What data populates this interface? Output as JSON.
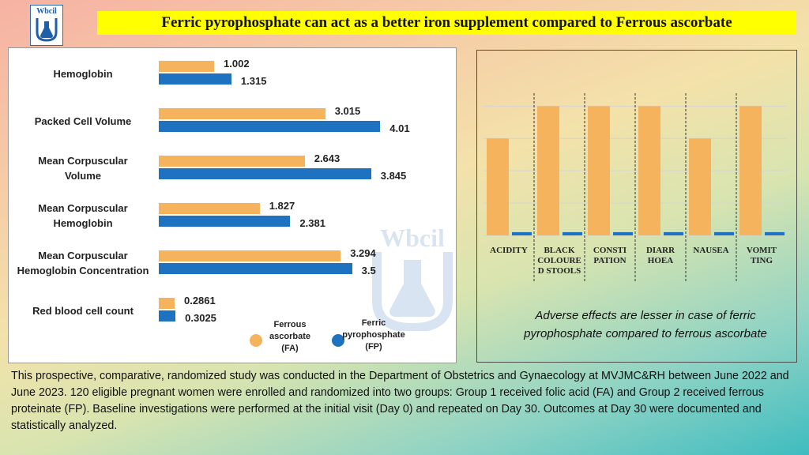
{
  "logo": {
    "text": "Wbcil"
  },
  "headline": "Ferric pyrophosphate can act as a better iron supplement compared to Ferrous ascorbate",
  "watermark": {
    "text": "Wbcil"
  },
  "legend": {
    "fa": {
      "lines": [
        "Ferrous",
        "ascorbate",
        "(FA)"
      ],
      "color": "#f5b35e"
    },
    "fp": {
      "lines": [
        "Ferric",
        "pyrophosphate",
        "(FP)"
      ],
      "color": "#1e72bf"
    }
  },
  "chart_data": [
    {
      "type": "bar",
      "orientation": "horizontal",
      "title": "",
      "categories": [
        [
          "Hemoglobin"
        ],
        [
          "Packed Cell Volume"
        ],
        [
          "Mean Corpuscular",
          "Volume"
        ],
        [
          "Mean Corpuscular",
          "Hemoglobin"
        ],
        [
          "Mean Corpuscular",
          "Hemoglobin Concentration"
        ],
        [
          "Red blood cell count"
        ]
      ],
      "series": [
        {
          "name": "Ferrous ascorbate (FA)",
          "color": "#f5b35e",
          "values": [
            1.002,
            3.015,
            2.643,
            1.827,
            3.294,
            0.2861
          ],
          "labels": [
            "1.002",
            "3.015",
            "2.643",
            "1.827",
            "3.294",
            "0.2861"
          ]
        },
        {
          "name": "Ferric pyrophosphate (FP)",
          "color": "#1e72bf",
          "values": [
            1.315,
            4.01,
            3.845,
            2.381,
            3.5,
            0.3025
          ],
          "labels": [
            "1.315",
            "4.01",
            "3.845",
            "2.381",
            "3.5",
            "0.3025"
          ]
        }
      ],
      "xlim": [
        0,
        4.65
      ],
      "grid": false,
      "legend_position": "bottom-right"
    },
    {
      "type": "bar",
      "orientation": "vertical",
      "title": "",
      "categories": [
        [
          "ACIDITY"
        ],
        [
          "BLACK",
          "COLOURE",
          "D STOOLS"
        ],
        [
          "CONSTI",
          "PATION"
        ],
        [
          "DIARR",
          "HOEA"
        ],
        [
          "NAUSEA"
        ],
        [
          "VOMIT",
          "TING"
        ]
      ],
      "series": [
        {
          "color": "#f5b35e",
          "values": [
            3,
            4,
            4,
            4,
            3,
            4
          ]
        },
        {
          "color": "#1e72bf",
          "values": [
            0.1,
            0.1,
            0.1,
            0.1,
            0.1,
            0.1
          ]
        }
      ],
      "ylim": [
        0,
        4.4
      ],
      "grid": true
    }
  ],
  "caption": "Adverse effects are lesser in case of ferric pyrophosphate compared to ferrous ascorbate",
  "description": "This prospective, comparative, randomized study was conducted in the Department of Obstetrics and Gynaecology at MVJMC&RH between June 2022 and June 2023. 120 eligible pregnant women were enrolled and randomized into two groups: Group 1 received folic acid (FA) and Group 2 received ferrous proteinate (FP). Baseline investigations were performed at the initial visit (Day 0) and repeated on Day 30. Outcomes at Day 30 were documented and statistically analyzed."
}
